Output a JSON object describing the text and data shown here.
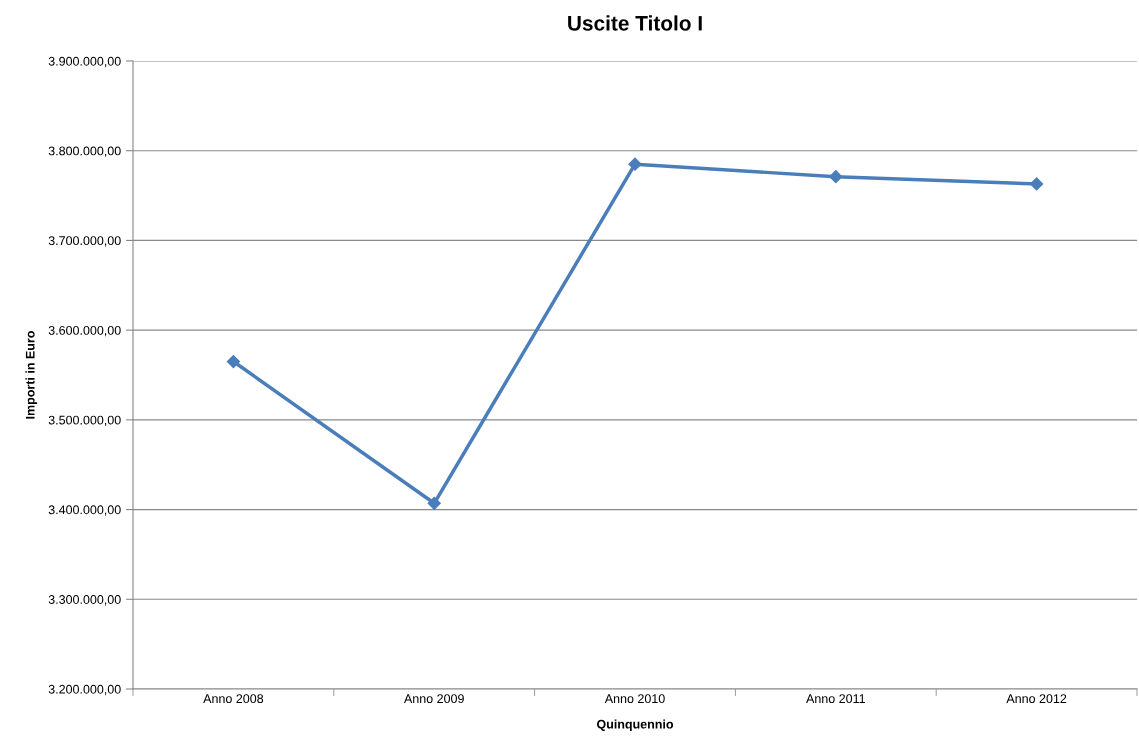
{
  "chart_data": {
    "type": "line",
    "title": "Uscite Titolo I",
    "xlabel": "Quinquennio",
    "ylabel": "Importi in Euro",
    "categories": [
      "Anno 2008",
      "Anno 2009",
      "Anno 2010",
      "Anno 2011",
      "Anno 2012"
    ],
    "series": [
      {
        "color": "#4a7ebb",
        "values": [
          3565000,
          3407000,
          3785000,
          3771000,
          3763000
        ]
      }
    ],
    "ylim": [
      3200000,
      3900000
    ],
    "yticks": [
      {
        "value": 3200000,
        "label": "3.200.000,00"
      },
      {
        "value": 3300000,
        "label": "3.300.000,00"
      },
      {
        "value": 3400000,
        "label": "3.400.000,00"
      },
      {
        "value": 3500000,
        "label": "3.500.000,00"
      },
      {
        "value": 3600000,
        "label": "3.600.000,00"
      },
      {
        "value": 3700000,
        "label": "3.700.000,00"
      },
      {
        "value": 3800000,
        "label": "3.800.000,00"
      },
      {
        "value": 3900000,
        "label": "3.900.000,00"
      }
    ],
    "grid": "y",
    "marker": "diamond",
    "line_style": "solid"
  }
}
